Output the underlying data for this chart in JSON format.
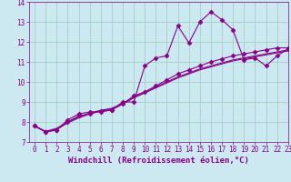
{
  "xlabel": "Windchill (Refroidissement éolien,°C)",
  "bg_color": "#cce8f0",
  "line_color": "#880088",
  "xlim": [
    -0.5,
    23
  ],
  "ylim": [
    7,
    14
  ],
  "yticks": [
    7,
    8,
    9,
    10,
    11,
    12,
    13,
    14
  ],
  "xticks": [
    0,
    1,
    2,
    3,
    4,
    5,
    6,
    7,
    8,
    9,
    10,
    11,
    12,
    13,
    14,
    15,
    16,
    17,
    18,
    19,
    20,
    21,
    22,
    23
  ],
  "series": [
    [
      7.8,
      7.5,
      7.6,
      8.1,
      8.4,
      8.5,
      8.5,
      8.6,
      9.0,
      9.0,
      10.8,
      11.2,
      11.3,
      12.8,
      11.95,
      13.0,
      13.5,
      13.1,
      12.6,
      11.1,
      11.2,
      10.8,
      11.3,
      11.65
    ],
    [
      7.8,
      7.5,
      7.6,
      8.0,
      8.3,
      8.4,
      8.55,
      8.6,
      8.9,
      9.3,
      9.5,
      9.8,
      10.1,
      10.4,
      10.6,
      10.8,
      11.0,
      11.15,
      11.3,
      11.4,
      11.5,
      11.6,
      11.7,
      11.7
    ],
    [
      7.8,
      7.52,
      7.64,
      7.95,
      8.2,
      8.4,
      8.55,
      8.65,
      8.9,
      9.2,
      9.45,
      9.7,
      9.95,
      10.2,
      10.4,
      10.6,
      10.75,
      10.9,
      11.05,
      11.15,
      11.25,
      11.35,
      11.45,
      11.55
    ],
    [
      7.8,
      7.53,
      7.68,
      8.0,
      8.25,
      8.45,
      8.58,
      8.68,
      8.92,
      9.25,
      9.5,
      9.75,
      10.0,
      10.25,
      10.45,
      10.65,
      10.8,
      10.95,
      11.1,
      11.2,
      11.3,
      11.4,
      11.5,
      11.6
    ]
  ],
  "markers": [
    "D",
    "D",
    null,
    null
  ],
  "markersize": [
    2.5,
    2.5,
    0,
    0
  ],
  "linewidths": [
    0.8,
    0.8,
    0.8,
    0.8
  ],
  "grid_color": "#99ccbb",
  "tick_fontsize": 5.5,
  "xlabel_fontsize": 6.5
}
